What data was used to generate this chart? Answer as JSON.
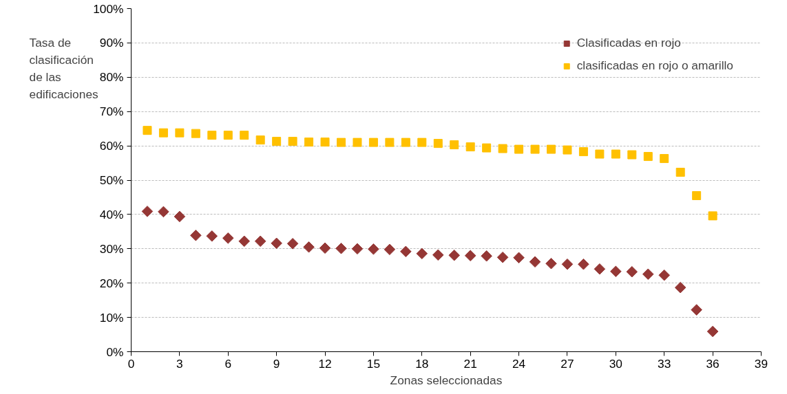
{
  "chart_data": {
    "type": "scatter",
    "xlabel": "Zonas seleccionadas",
    "ylabel": "Tasa de\nclasificación\nde las\nedificaciones",
    "x": [
      1,
      2,
      3,
      4,
      5,
      6,
      7,
      8,
      9,
      10,
      11,
      12,
      13,
      14,
      15,
      16,
      17,
      18,
      19,
      20,
      21,
      22,
      23,
      24,
      25,
      26,
      27,
      28,
      29,
      30,
      31,
      32,
      33,
      34,
      35,
      36
    ],
    "series": [
      {
        "name": "Clasificadas en rojo",
        "color": "#953735",
        "marker": "diamond",
        "values": [
          40.9,
          40.8,
          39.4,
          33.9,
          33.7,
          33.1,
          32.2,
          32.2,
          31.6,
          31.5,
          30.5,
          30.2,
          30.1,
          30.0,
          29.9,
          29.8,
          29.2,
          28.6,
          28.2,
          28.1,
          28.0,
          27.9,
          27.5,
          27.4,
          26.2,
          25.7,
          25.5,
          25.5,
          24.1,
          23.4,
          23.3,
          22.6,
          22.3,
          18.7,
          12.2,
          5.9
        ]
      },
      {
        "name": "clasificadas en rojo o amarillo",
        "color": "#ffc000",
        "marker": "square",
        "values": [
          64.5,
          63.8,
          63.8,
          63.6,
          63.1,
          63.1,
          63.1,
          61.7,
          61.3,
          61.3,
          61.1,
          61.1,
          61.0,
          61.0,
          61.0,
          61.0,
          61.0,
          61.0,
          60.7,
          60.3,
          59.7,
          59.4,
          59.2,
          59.0,
          59.0,
          59.0,
          58.8,
          58.3,
          57.6,
          57.6,
          57.4,
          56.9,
          56.3,
          52.3,
          45.5,
          39.6
        ]
      }
    ],
    "xlim": [
      0,
      39
    ],
    "xticks": [
      0,
      3,
      6,
      9,
      12,
      15,
      18,
      21,
      24,
      27,
      30,
      33,
      36,
      39
    ],
    "ylim": [
      0,
      100
    ],
    "yticks": [
      {
        "value": 0,
        "label": "0%"
      },
      {
        "value": 10,
        "label": "10%"
      },
      {
        "value": 20,
        "label": "20%"
      },
      {
        "value": 30,
        "label": "30%"
      },
      {
        "value": 40,
        "label": "40%"
      },
      {
        "value": 50,
        "label": "50%"
      },
      {
        "value": 60,
        "label": "60%"
      },
      {
        "value": 70,
        "label": "70%"
      },
      {
        "value": 80,
        "label": "80%"
      },
      {
        "value": 90,
        "label": "90%"
      },
      {
        "value": 100,
        "label": "100%"
      }
    ],
    "grid": "y",
    "legend": "top right"
  }
}
